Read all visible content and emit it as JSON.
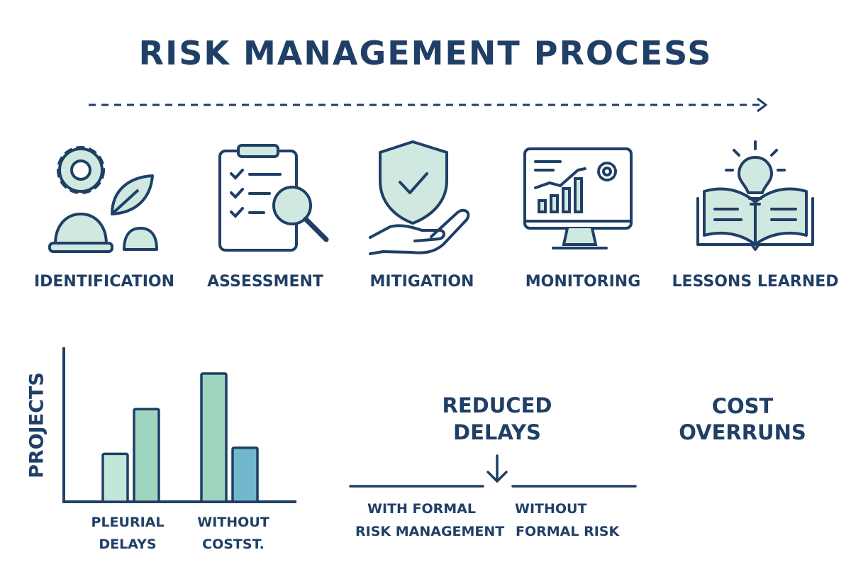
{
  "title": "RISK MANAGEMENT PROCESS",
  "steps": [
    {
      "label": "IDENTIFICATION",
      "icon": "gear-leaf-hardhat-icon"
    },
    {
      "label": "ASSESSMENT",
      "icon": "clipboard-magnifier-icon"
    },
    {
      "label": "MITIGATION",
      "icon": "shield-hand-icon"
    },
    {
      "label": "MONITORING",
      "icon": "monitor-chart-icon"
    },
    {
      "label": "LESSONS LEARNED",
      "icon": "book-lightbulb-icon"
    }
  ],
  "chart_data": {
    "type": "bar",
    "ylabel": "PROJECTS",
    "categories": [
      "PLEURIAL DELAYS",
      "WITHOUT COSTST."
    ],
    "values_note_free": true,
    "series_values": [
      [
        0.31,
        0.6
      ],
      [
        0.83,
        0.35
      ]
    ],
    "bar_colors": [
      [
        "#c3e6da",
        "#9fd4bf"
      ],
      [
        "#9fd4bf",
        "#72b8cc"
      ]
    ],
    "ylim": [
      0,
      1
    ],
    "grid": false
  },
  "comparison": {
    "heading": [
      "REDUCED",
      "DELAYS"
    ],
    "left": [
      "WITH FORMAL",
      "RISK MANAGEMENT"
    ],
    "right": [
      "WITHOUT",
      "FORMAL RISK"
    ]
  },
  "cost": [
    "COST",
    "OVERRUNS"
  ],
  "colors": {
    "navy": "#1f3f66",
    "fill": "#cfe9e1"
  }
}
